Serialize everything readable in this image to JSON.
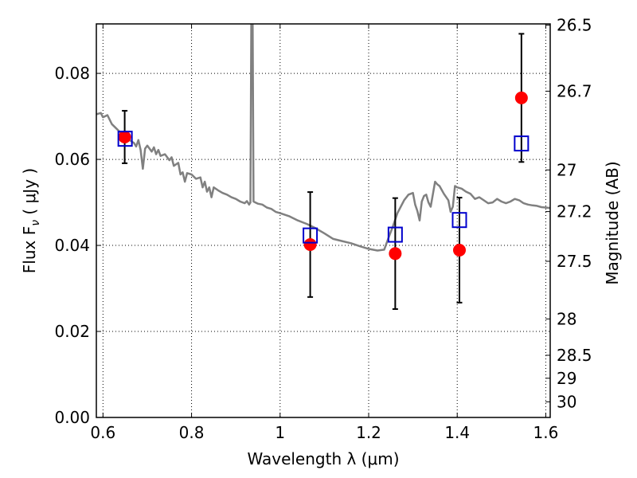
{
  "chart_data": {
    "type": "scatter",
    "xlabel": "Wavelength  λ (μm)",
    "ylabel": "Flux  F",
    "ylabel_sub": "ν",
    "ylabel_units": " ( μJy )",
    "y2label": "Magnitude (AB)",
    "xlim": [
      0.585,
      1.61
    ],
    "ylim": [
      0.0,
      0.0915
    ],
    "grid": true,
    "grid_style": "dotted",
    "x_ticks": [
      0.6,
      0.8,
      1.0,
      1.2,
      1.4,
      1.6
    ],
    "x_tick_labels": [
      "0.6",
      "0.8",
      "1",
      "1.2",
      "1.4",
      "1.6"
    ],
    "y_ticks": [
      0.0,
      0.02,
      0.04,
      0.06,
      0.08
    ],
    "y_tick_labels": [
      "0.00",
      "0.02",
      "0.04",
      "0.06",
      "0.08"
    ],
    "y2_ticks": [
      26.5,
      26.7,
      27,
      27.2,
      27.5,
      28,
      28.5,
      29,
      30
    ],
    "y2_tick_labels": [
      "26.5",
      "26.7",
      "27",
      "27.2",
      "27.5",
      "28",
      "28.5",
      "29",
      "30"
    ],
    "series": [
      {
        "style": "line",
        "color": "#808080",
        "points": [
          [
            0.585,
            0.0705
          ],
          [
            0.595,
            0.0708
          ],
          [
            0.6,
            0.0698
          ],
          [
            0.61,
            0.0703
          ],
          [
            0.62,
            0.0682
          ],
          [
            0.63,
            0.0672
          ],
          [
            0.64,
            0.0662
          ],
          [
            0.65,
            0.0658
          ],
          [
            0.66,
            0.0645
          ],
          [
            0.67,
            0.0638
          ],
          [
            0.675,
            0.063
          ],
          [
            0.68,
            0.0645
          ],
          [
            0.685,
            0.0622
          ],
          [
            0.69,
            0.0578
          ],
          [
            0.695,
            0.0625
          ],
          [
            0.7,
            0.0632
          ],
          [
            0.71,
            0.0618
          ],
          [
            0.715,
            0.0628
          ],
          [
            0.72,
            0.0612
          ],
          [
            0.725,
            0.0622
          ],
          [
            0.73,
            0.0608
          ],
          [
            0.74,
            0.0612
          ],
          [
            0.75,
            0.0598
          ],
          [
            0.755,
            0.0605
          ],
          [
            0.76,
            0.0585
          ],
          [
            0.77,
            0.0592
          ],
          [
            0.775,
            0.0565
          ],
          [
            0.78,
            0.057
          ],
          [
            0.785,
            0.0548
          ],
          [
            0.79,
            0.0568
          ],
          [
            0.8,
            0.0565
          ],
          [
            0.81,
            0.0555
          ],
          [
            0.82,
            0.0558
          ],
          [
            0.825,
            0.0535
          ],
          [
            0.83,
            0.0548
          ],
          [
            0.835,
            0.0525
          ],
          [
            0.84,
            0.0535
          ],
          [
            0.845,
            0.0512
          ],
          [
            0.85,
            0.0535
          ],
          [
            0.86,
            0.0528
          ],
          [
            0.87,
            0.0522
          ],
          [
            0.88,
            0.0518
          ],
          [
            0.89,
            0.0512
          ],
          [
            0.9,
            0.0508
          ],
          [
            0.91,
            0.0502
          ],
          [
            0.92,
            0.0498
          ],
          [
            0.925,
            0.0503
          ],
          [
            0.93,
            0.0495
          ],
          [
            0.933,
            0.05
          ],
          [
            0.935,
            0.0915
          ],
          [
            0.938,
            0.0915
          ],
          [
            0.94,
            0.0502
          ],
          [
            0.95,
            0.0497
          ],
          [
            0.96,
            0.0495
          ],
          [
            0.97,
            0.0488
          ],
          [
            0.98,
            0.0485
          ],
          [
            0.99,
            0.0478
          ],
          [
            1.0,
            0.0475
          ],
          [
            1.02,
            0.0468
          ],
          [
            1.04,
            0.0458
          ],
          [
            1.06,
            0.045
          ],
          [
            1.08,
            0.044
          ],
          [
            1.1,
            0.0428
          ],
          [
            1.12,
            0.0415
          ],
          [
            1.14,
            0.041
          ],
          [
            1.16,
            0.0405
          ],
          [
            1.18,
            0.0398
          ],
          [
            1.2,
            0.0392
          ],
          [
            1.22,
            0.0388
          ],
          [
            1.235,
            0.039
          ],
          [
            1.245,
            0.0418
          ],
          [
            1.255,
            0.0445
          ],
          [
            1.265,
            0.0475
          ],
          [
            1.28,
            0.0505
          ],
          [
            1.29,
            0.0518
          ],
          [
            1.3,
            0.0522
          ],
          [
            1.305,
            0.0495
          ],
          [
            1.31,
            0.048
          ],
          [
            1.315,
            0.0458
          ],
          [
            1.32,
            0.0502
          ],
          [
            1.325,
            0.0515
          ],
          [
            1.33,
            0.0518
          ],
          [
            1.335,
            0.05
          ],
          [
            1.34,
            0.049
          ],
          [
            1.35,
            0.0548
          ],
          [
            1.355,
            0.0542
          ],
          [
            1.36,
            0.0538
          ],
          [
            1.37,
            0.052
          ],
          [
            1.38,
            0.0505
          ],
          [
            1.385,
            0.0478
          ],
          [
            1.39,
            0.049
          ],
          [
            1.395,
            0.0538
          ],
          [
            1.4,
            0.0535
          ],
          [
            1.41,
            0.0532
          ],
          [
            1.42,
            0.0525
          ],
          [
            1.43,
            0.052
          ],
          [
            1.44,
            0.0508
          ],
          [
            1.45,
            0.0512
          ],
          [
            1.46,
            0.0505
          ],
          [
            1.47,
            0.0498
          ],
          [
            1.48,
            0.05
          ],
          [
            1.49,
            0.0508
          ],
          [
            1.5,
            0.0502
          ],
          [
            1.51,
            0.0498
          ],
          [
            1.52,
            0.0502
          ],
          [
            1.53,
            0.0508
          ],
          [
            1.54,
            0.0505
          ],
          [
            1.55,
            0.0498
          ],
          [
            1.56,
            0.0495
          ],
          [
            1.57,
            0.0493
          ],
          [
            1.58,
            0.0492
          ],
          [
            1.59,
            0.0489
          ],
          [
            1.6,
            0.0488
          ],
          [
            1.61,
            0.0487
          ]
        ]
      },
      {
        "style": "errorbar-circle",
        "color": "#ff0000",
        "points": [
          {
            "x": 0.649,
            "y": 0.0652,
            "err": 0.0061
          },
          {
            "x": 1.068,
            "y": 0.0402,
            "err": 0.0122
          },
          {
            "x": 1.26,
            "y": 0.0381,
            "err": 0.0129
          },
          {
            "x": 1.405,
            "y": 0.0389,
            "err": 0.0122
          },
          {
            "x": 1.545,
            "y": 0.0743,
            "err": 0.0149
          }
        ]
      },
      {
        "style": "open-square",
        "color": "#0000cc",
        "points": [
          {
            "x": 0.65,
            "y": 0.0648
          },
          {
            "x": 1.068,
            "y": 0.0423
          },
          {
            "x": 1.26,
            "y": 0.0425
          },
          {
            "x": 1.405,
            "y": 0.0459
          },
          {
            "x": 1.545,
            "y": 0.0637
          }
        ]
      }
    ]
  }
}
